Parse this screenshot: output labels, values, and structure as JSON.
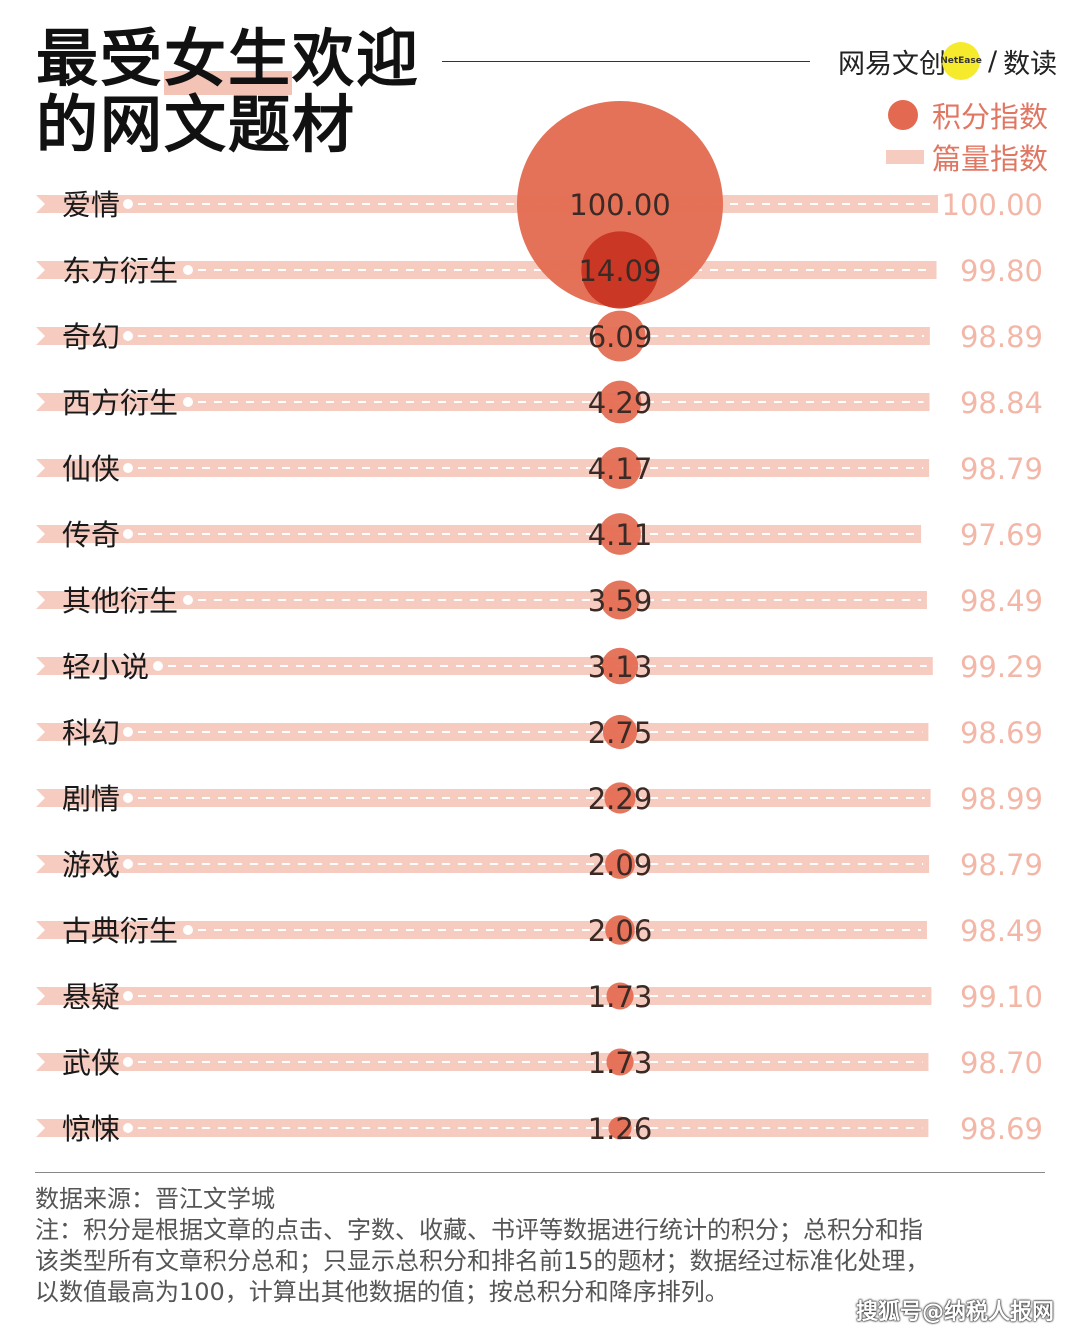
{
  "title": {
    "line1_pre": "最受",
    "line1_highlight": "女生",
    "line1_post": "欢迎",
    "line2": "的网文题材"
  },
  "brand": {
    "name": "网易文创",
    "badge": "NetEase",
    "slash": "/",
    "product": "数读"
  },
  "legend": {
    "score_label": "积分指数",
    "volume_label": "篇量指数"
  },
  "colors": {
    "bubble": "#e36a50",
    "bubble_overlap": "#c8321f",
    "bar": "#f6cbc0",
    "right_value": "#f3b7a8"
  },
  "chart_data": {
    "type": "bubble-bar",
    "categories": [
      "爱情",
      "东方衍生",
      "奇幻",
      "西方衍生",
      "仙侠",
      "传奇",
      "其他衍生",
      "轻小说",
      "科幻",
      "剧情",
      "游戏",
      "古典衍生",
      "悬疑",
      "武侠",
      "惊悚"
    ],
    "series": [
      {
        "name": "积分指数",
        "values": [
          100.0,
          14.09,
          6.09,
          4.29,
          4.17,
          4.11,
          3.59,
          3.13,
          2.75,
          2.29,
          2.09,
          2.06,
          1.73,
          1.73,
          1.26
        ],
        "labels": [
          "100.00",
          "14.09",
          "6.09",
          "4.29",
          "4.17",
          "4.11",
          "3.59",
          "3.13",
          "2.75",
          "2.29",
          "2.09",
          "2.06",
          "1.73",
          "1.73",
          "1.26"
        ]
      },
      {
        "name": "篇量指数",
        "values": [
          100.0,
          99.8,
          98.89,
          98.84,
          98.79,
          97.69,
          98.49,
          99.29,
          98.69,
          98.99,
          98.79,
          98.49,
          99.1,
          98.7,
          98.69
        ],
        "labels": [
          "100.00",
          "99.80",
          "98.89",
          "98.84",
          "98.79",
          "97.69",
          "98.49",
          "99.29",
          "98.69",
          "98.99",
          "98.79",
          "98.49",
          "99.10",
          "98.70",
          "98.69"
        ]
      }
    ]
  },
  "footer": {
    "source": "数据来源：晋江文学城",
    "note1": "注：积分是根据文章的点击、字数、收藏、书评等数据进行统计的积分；总积分和指",
    "note2": "该类型所有文章积分总和；只显示总积分和排名前15的题材；数据经过标准化处理，",
    "note3": "以数值最高为100，计算出其他数据的值；按总积分和降序排列。"
  },
  "watermark": "搜狐号@纳税人报网"
}
